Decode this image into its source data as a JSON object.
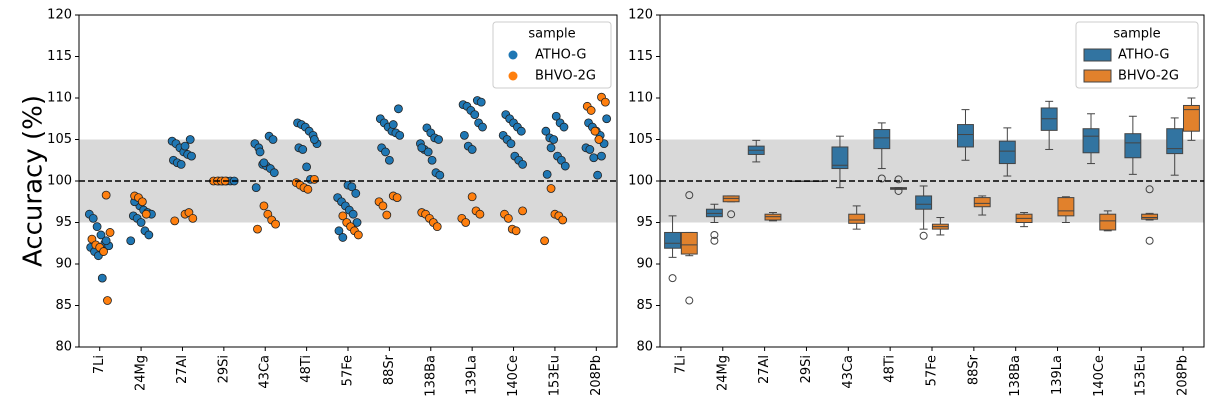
{
  "chart_data": [
    {
      "type": "strip",
      "ylabel": "Accuracy (%)",
      "categories": [
        "7Li",
        "24Mg",
        "27Al",
        "29Si",
        "43Ca",
        "48Ti",
        "57Fe",
        "88Sr",
        "138Ba",
        "139La",
        "140Ce",
        "153Eu",
        "208Pb"
      ],
      "ylim": [
        80,
        120
      ],
      "yticks": [
        80,
        85,
        90,
        95,
        100,
        105,
        110,
        115,
        120
      ],
      "reference_band": [
        95,
        105
      ],
      "reference_line": 100,
      "legend_title": "sample",
      "legend": "upper right",
      "series": [
        {
          "name": "ATHO-G",
          "color": "#1f77b4",
          "values": [
            [
              96,
              95.5,
              94.5,
              93.5,
              92.5,
              92.2,
              92,
              91.5,
              91,
              88.3,
              92.8
            ],
            [
              97,
              96.5,
              96.2,
              96,
              95.8,
              95.5,
              95,
              94,
              93.5,
              92.8,
              97.5
            ],
            [
              105,
              104.8,
              104.5,
              104,
              103.5,
              103.2,
              103,
              102.5,
              102.2,
              102,
              104.2
            ],
            [
              100,
              100,
              100,
              100,
              100
            ],
            [
              105.4,
              105,
              104.5,
              104,
              102,
              101.8,
              101.5,
              101,
              99.2,
              103.5,
              102.2
            ],
            [
              107,
              106.8,
              106.5,
              106,
              105.5,
              104.5,
              104,
              103.8,
              101.7,
              100.2,
              105
            ],
            [
              99.5,
              99.3,
              98.5,
              98,
              97.5,
              97,
              96.5,
              96,
              95,
              94,
              93.2
            ],
            [
              108.7,
              107.5,
              107,
              106.5,
              106,
              105.8,
              105.5,
              104,
              103.5,
              102.5,
              106.8
            ],
            [
              106.4,
              105.8,
              105.2,
              105,
              104.5,
              103.8,
              103.5,
              102.5,
              101,
              100.7,
              104
            ],
            [
              109.7,
              109.5,
              109.2,
              109,
              108.5,
              108,
              107,
              106.5,
              105.5,
              104.2,
              103.8
            ],
            [
              108,
              107.5,
              107,
              106.5,
              106,
              105.5,
              105,
              104.5,
              103,
              102.5,
              102
            ],
            [
              107.8,
              107,
              106.5,
              106,
              105.2,
              105,
              103,
              102.5,
              101.8,
              100.8,
              104
            ],
            [
              107.5,
              107,
              106.5,
              106,
              105.5,
              104.5,
              104,
              103.8,
              102.8,
              100.7,
              103
            ]
          ]
        },
        {
          "name": "BHVO-2G",
          "color": "#ff7f0e",
          "values": [
            [
              98.3,
              93.8,
              93,
              92.3,
              92,
              91.5,
              85.6
            ],
            [
              98.2,
              98,
              97.5,
              96
            ],
            [
              96,
              96.2,
              95.5,
              95.2
            ],
            [
              100,
              100,
              100,
              100
            ],
            [
              97,
              96,
              95.3,
              94.8,
              94.2
            ],
            [
              100.2,
              99.8,
              99.5,
              99.2,
              99
            ],
            [
              95.8,
              95,
              94.5,
              94,
              93.5
            ],
            [
              98.2,
              98,
              97.5,
              97,
              95.9
            ],
            [
              96.2,
              96,
              95.5,
              95,
              94.5
            ],
            [
              98.1,
              96.4,
              96,
              95.5,
              95
            ],
            [
              96.4,
              96,
              95.5,
              94.2,
              94
            ],
            [
              99.1,
              96,
              95.8,
              95.3,
              92.8
            ],
            [
              110.1,
              109.5,
              109,
              108.5,
              106,
              105
            ]
          ]
        }
      ]
    },
    {
      "type": "box",
      "categories": [
        "7Li",
        "24Mg",
        "27Al",
        "29Si",
        "43Ca",
        "48Ti",
        "57Fe",
        "88Sr",
        "138Ba",
        "139La",
        "140Ce",
        "153Eu",
        "208Pb"
      ],
      "ylim": [
        80,
        120
      ],
      "yticks": [
        80,
        85,
        90,
        95,
        100,
        105,
        110,
        115,
        120
      ],
      "reference_band": [
        95,
        105
      ],
      "reference_line": 100,
      "legend_title": "sample",
      "legend": "upper right",
      "series": [
        {
          "name": "ATHO-G",
          "color": "#3274a1",
          "boxes": [
            {
              "low": 90.8,
              "q1": 91.9,
              "median": 92.5,
              "q3": 93.8,
              "high": 95.8,
              "outliers": [
                88.3
              ]
            },
            {
              "low": 95,
              "q1": 95.7,
              "median": 96.1,
              "q3": 96.6,
              "high": 97.2,
              "outliers": [
                93.5,
                92.8
              ]
            },
            {
              "low": 102.3,
              "q1": 103.2,
              "median": 103.7,
              "q3": 104.2,
              "high": 104.9,
              "outliers": []
            },
            {
              "low": 100,
              "q1": 100,
              "median": 100,
              "q3": 100,
              "high": 100,
              "outliers": []
            },
            {
              "low": 99.2,
              "q1": 101.5,
              "median": 101.9,
              "q3": 104.1,
              "high": 105.4,
              "outliers": []
            },
            {
              "low": 101.5,
              "q1": 103.9,
              "median": 105.2,
              "q3": 106.2,
              "high": 107,
              "outliers": [
                100.3
              ]
            },
            {
              "low": 94.2,
              "q1": 96.6,
              "median": 97.2,
              "q3": 98.2,
              "high": 99.4,
              "outliers": [
                93.4
              ]
            },
            {
              "low": 102.5,
              "q1": 104.1,
              "median": 105.6,
              "q3": 106.8,
              "high": 108.6,
              "outliers": []
            },
            {
              "low": 100.6,
              "q1": 102.1,
              "median": 103.6,
              "q3": 104.8,
              "high": 106.4,
              "outliers": []
            },
            {
              "low": 103.8,
              "q1": 106.1,
              "median": 107.5,
              "q3": 108.8,
              "high": 109.6,
              "outliers": []
            },
            {
              "low": 102.1,
              "q1": 103.4,
              "median": 105.4,
              "q3": 106.3,
              "high": 108.1,
              "outliers": []
            },
            {
              "low": 100.8,
              "q1": 102.8,
              "median": 104.6,
              "q3": 105.7,
              "high": 107.8,
              "outliers": []
            },
            {
              "low": 100.7,
              "q1": 103.3,
              "median": 103.9,
              "q3": 106.3,
              "high": 107.6,
              "outliers": []
            }
          ]
        },
        {
          "name": "BHVO-2G",
          "color": "#e1812c",
          "boxes": [
            {
              "low": 91,
              "q1": 91.2,
              "median": 92.3,
              "q3": 93.8,
              "high": 93.8,
              "outliers": [
                98.3,
                85.6
              ]
            },
            {
              "low": 97.5,
              "q1": 97.5,
              "median": 97.9,
              "q3": 98.2,
              "high": 98.2,
              "outliers": [
                96
              ]
            },
            {
              "low": 95.2,
              "q1": 95.3,
              "median": 95.7,
              "q3": 96,
              "high": 96.2,
              "outliers": []
            },
            {
              "low": 100,
              "q1": 100,
              "median": 100,
              "q3": 100,
              "high": 100,
              "outliers": []
            },
            {
              "low": 94.2,
              "q1": 94.9,
              "median": 95.3,
              "q3": 96,
              "high": 97,
              "outliers": []
            },
            {
              "low": 99,
              "q1": 99,
              "median": 99.1,
              "q3": 99.2,
              "high": 99.2,
              "outliers": [
                100.2,
                98.8
              ]
            },
            {
              "low": 93.5,
              "q1": 94.2,
              "median": 94.5,
              "q3": 94.8,
              "high": 95.6,
              "outliers": []
            },
            {
              "low": 95.9,
              "q1": 96.9,
              "median": 97.3,
              "q3": 98,
              "high": 98.2,
              "outliers": []
            },
            {
              "low": 94.5,
              "q1": 95,
              "median": 95.5,
              "q3": 96,
              "high": 96.2,
              "outliers": []
            },
            {
              "low": 95,
              "q1": 95.8,
              "median": 96.4,
              "q3": 98,
              "high": 98.1,
              "outliers": []
            },
            {
              "low": 94,
              "q1": 94.1,
              "median": 95.2,
              "q3": 96,
              "high": 96.4,
              "outliers": []
            },
            {
              "low": 95.3,
              "q1": 95.4,
              "median": 95.6,
              "q3": 96,
              "high": 96.1,
              "outliers": [
                99,
                92.8
              ]
            },
            {
              "low": 104.9,
              "q1": 106,
              "median": 108.6,
              "q3": 109.1,
              "high": 110,
              "outliers": []
            }
          ]
        }
      ]
    }
  ]
}
